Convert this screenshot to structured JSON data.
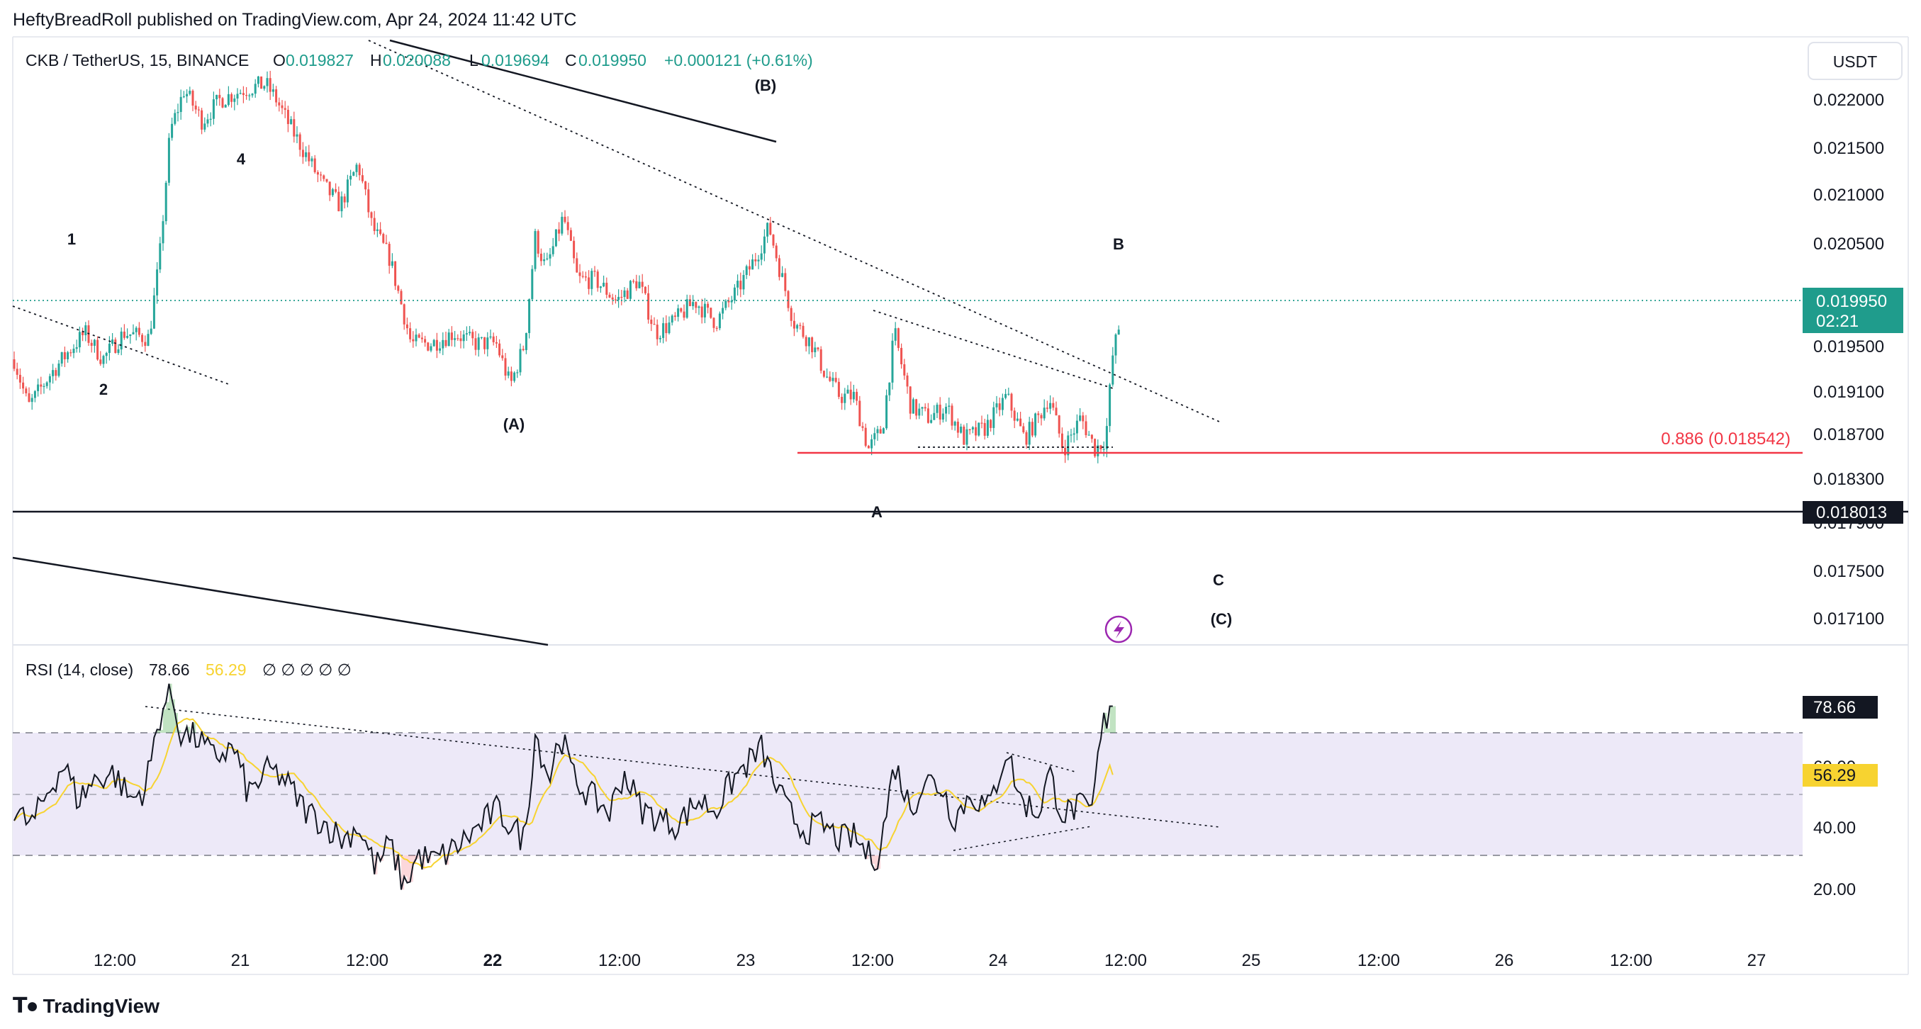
{
  "header": {
    "published": "HeftyBreadRoll published on TradingView.com, Apr 24, 2024 11:42 UTC"
  },
  "footer": {
    "brand": "TradingView"
  },
  "currency_button": "USDT",
  "legend": {
    "symbol": "CKB / TetherUS, 15, BINANCE",
    "o_label": "O",
    "o": "0.019827",
    "h_label": "H",
    "h": "0.020088",
    "l_label": "L",
    "l": "0.019694",
    "c_label": "C",
    "c": "0.019950",
    "change": "+0.000121 (+0.61%)"
  },
  "rsi_legend": {
    "title": "RSI (14, close)",
    "value": "78.66",
    "ma": "56.29",
    "extras": "∅ ∅ ∅ ∅ ∅"
  },
  "colors": {
    "up": "#26a69a",
    "down": "#ef5350",
    "rsi_line": "#131722",
    "rsi_ma": "#f7d330",
    "band": "#ede9f8",
    "fib": "#f23645",
    "last": "#1f9c8c"
  },
  "chart_data": [
    {
      "type": "candlestick",
      "title": "CKB / TetherUS, 15, BINANCE",
      "ylim": [
        0.0169,
        0.0225
      ],
      "y_ticks": [
        "0.022000",
        "0.021500",
        "0.021000",
        "0.020500",
        "0.019500",
        "0.019100",
        "0.018700",
        "0.018300",
        "0.017900",
        "0.017500",
        "0.017100"
      ],
      "x_ticks": [
        "12:00",
        "21",
        "12:00",
        "22",
        "12:00",
        "23",
        "12:00",
        "24",
        "12:00",
        "25",
        "12:00",
        "26",
        "12:00",
        "27"
      ],
      "last_price": "0.019950",
      "countdown": "02:21",
      "level_black": "0.018013",
      "fib_label": "0.886 (0.018542)",
      "fib_value": 0.018542,
      "wave_labels": [
        "1",
        "2",
        "4",
        "(A)",
        "(B)",
        "A",
        "B",
        "C",
        "(C)"
      ]
    },
    {
      "type": "line",
      "title": "RSI (14, close)",
      "ylim": [
        10,
        90
      ],
      "y_ticks": [
        "60.00",
        "40.00",
        "20.00"
      ],
      "upper_band": 70,
      "lower_band": 30,
      "mid": 50,
      "rsi_last": "78.66",
      "ma_last": "56.29"
    }
  ]
}
